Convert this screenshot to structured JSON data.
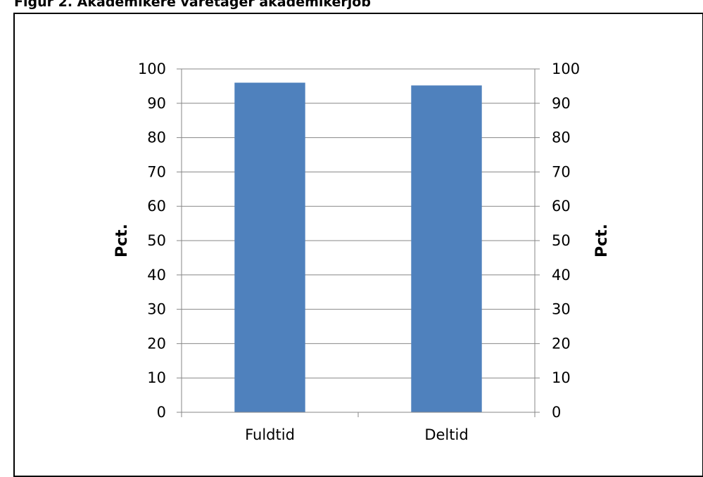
{
  "figure": {
    "title": "Figur 2. Akademikere varetager akademikerjob"
  },
  "chart_data": {
    "type": "bar",
    "title": "",
    "categories": [
      "Fuldtid",
      "Deltid"
    ],
    "series": [
      {
        "values": [
          96,
          95.2
        ]
      }
    ],
    "ylabel": "Pct.",
    "ylabel_right": "Pct.",
    "ylim": [
      0,
      100
    ],
    "yticks": [
      0,
      10,
      20,
      30,
      40,
      50,
      60,
      70,
      80,
      90,
      100
    ],
    "grid": true,
    "legend": "none",
    "bar_color": "#4F81BD",
    "grid_color": "#878787"
  }
}
